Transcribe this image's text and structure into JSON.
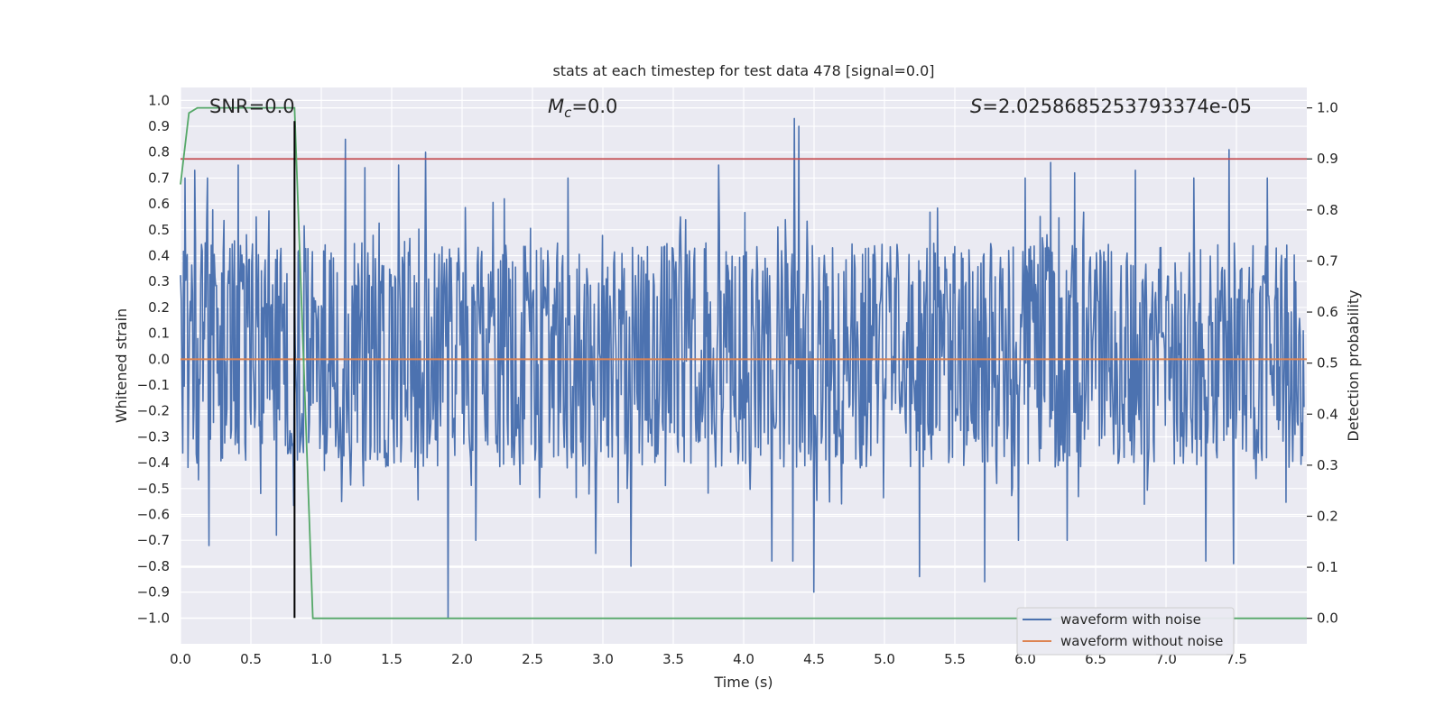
{
  "chart_data": {
    "type": "line",
    "title": "stats at each timestep for test data 478 [signal=0.0]",
    "xlabel": "Time (s)",
    "ylabel": "Whitened strain",
    "y2label": "Detection probability",
    "xlim": [
      0.0,
      8.0
    ],
    "ylim": [
      -1.1,
      1.05
    ],
    "y2lim": [
      -0.05,
      1.04
    ],
    "x_ticks": [
      0.0,
      0.5,
      1.0,
      1.5,
      2.0,
      2.5,
      3.0,
      3.5,
      4.0,
      4.5,
      5.0,
      5.5,
      6.0,
      6.5,
      7.0,
      7.5
    ],
    "x_tick_labels": [
      "0.0",
      "0.5",
      "1.0",
      "1.5",
      "2.0",
      "2.5",
      "3.0",
      "3.5",
      "4.0",
      "4.5",
      "5.0",
      "5.5",
      "6.0",
      "6.5",
      "7.0",
      "7.5"
    ],
    "y_ticks": [
      1.0,
      0.9,
      0.8,
      0.7,
      0.6,
      0.5,
      0.4,
      0.3,
      0.2,
      0.1,
      0.0,
      -0.1,
      -0.2,
      -0.3,
      -0.4,
      -0.5,
      -0.6,
      -0.7,
      -0.8,
      -0.9,
      -1.0
    ],
    "y_tick_labels": [
      "1.0",
      "0.9",
      "0.8",
      "0.7",
      "0.6",
      "0.5",
      "0.4",
      "0.3",
      "0.2",
      "0.1",
      "0.0",
      "−0.1",
      "−0.2",
      "−0.3",
      "−0.4",
      "−0.5",
      "−0.6",
      "−0.7",
      "−0.8",
      "−0.9",
      "−1.0"
    ],
    "y2_ticks": [
      1.0,
      0.9,
      0.8,
      0.7,
      0.6,
      0.5,
      0.4,
      0.3,
      0.2,
      0.1,
      0.0
    ],
    "y2_tick_labels": [
      "1.0",
      "0.9",
      "0.8",
      "0.7",
      "0.6",
      "0.5",
      "0.4",
      "0.3",
      "0.2",
      "0.1",
      "0.0"
    ],
    "grid": true,
    "legend_placement": "lower-right",
    "annotations": {
      "snr": "SNR=0.0",
      "mc_symbol": "M",
      "mc_sub": "c",
      "mc_value": "=0.0",
      "s_symbol": "S",
      "s_value": "=2.0258685253793374e-05"
    },
    "series": [
      {
        "name": "waveform with noise",
        "axis": "left",
        "color": "#4c72b0",
        "noise_envelope": {
          "typical_max": 0.45,
          "typical_min": -0.42
        },
        "spikes": [
          [
            0.03,
            0.7
          ],
          [
            0.1,
            0.73
          ],
          [
            0.19,
            0.7
          ],
          [
            0.41,
            0.75
          ],
          [
            0.2,
            -0.72
          ],
          [
            0.68,
            -0.68
          ],
          [
            1.17,
            0.85
          ],
          [
            1.31,
            0.74
          ],
          [
            1.55,
            0.75
          ],
          [
            1.74,
            0.8
          ],
          [
            1.9,
            -1.0
          ],
          [
            2.3,
            0.62
          ],
          [
            2.75,
            0.7
          ],
          [
            2.95,
            -0.75
          ],
          [
            3.2,
            -0.8
          ],
          [
            3.82,
            0.75
          ],
          [
            4.2,
            -0.78
          ],
          [
            4.36,
            0.93
          ],
          [
            4.39,
            0.9
          ],
          [
            4.35,
            -0.78
          ],
          [
            4.5,
            -0.9
          ],
          [
            5.25,
            -0.84
          ],
          [
            5.71,
            -0.86
          ],
          [
            6.0,
            0.7
          ],
          [
            6.18,
            0.76
          ],
          [
            6.35,
            0.72
          ],
          [
            6.78,
            0.73
          ],
          [
            7.2,
            0.7
          ],
          [
            7.28,
            -0.78
          ],
          [
            7.45,
            0.81
          ],
          [
            7.48,
            -0.79
          ],
          [
            7.72,
            0.7
          ],
          [
            6.3,
            -0.7
          ],
          [
            5.95,
            -0.7
          ],
          [
            2.1,
            -0.7
          ]
        ]
      },
      {
        "name": "waveform without noise",
        "axis": "left",
        "color": "#dd8452",
        "x": [
          0.0,
          8.0
        ],
        "y": [
          0.0,
          0.0
        ]
      },
      {
        "name": "Detection probability",
        "axis": "right",
        "color": "#55a868",
        "x": [
          0.0,
          0.06,
          0.12,
          0.81,
          0.94,
          8.0
        ],
        "y": [
          0.85,
          0.99,
          1.0,
          1.0,
          0.0,
          0.0
        ]
      }
    ],
    "reference_lines": [
      {
        "orientation": "horizontal",
        "axis": "right",
        "value": 0.9,
        "color": "#c44e52"
      },
      {
        "orientation": "vertical",
        "value": 0.81,
        "y_from": -1.0,
        "y_to": 0.92,
        "color": "#000000"
      }
    ]
  }
}
